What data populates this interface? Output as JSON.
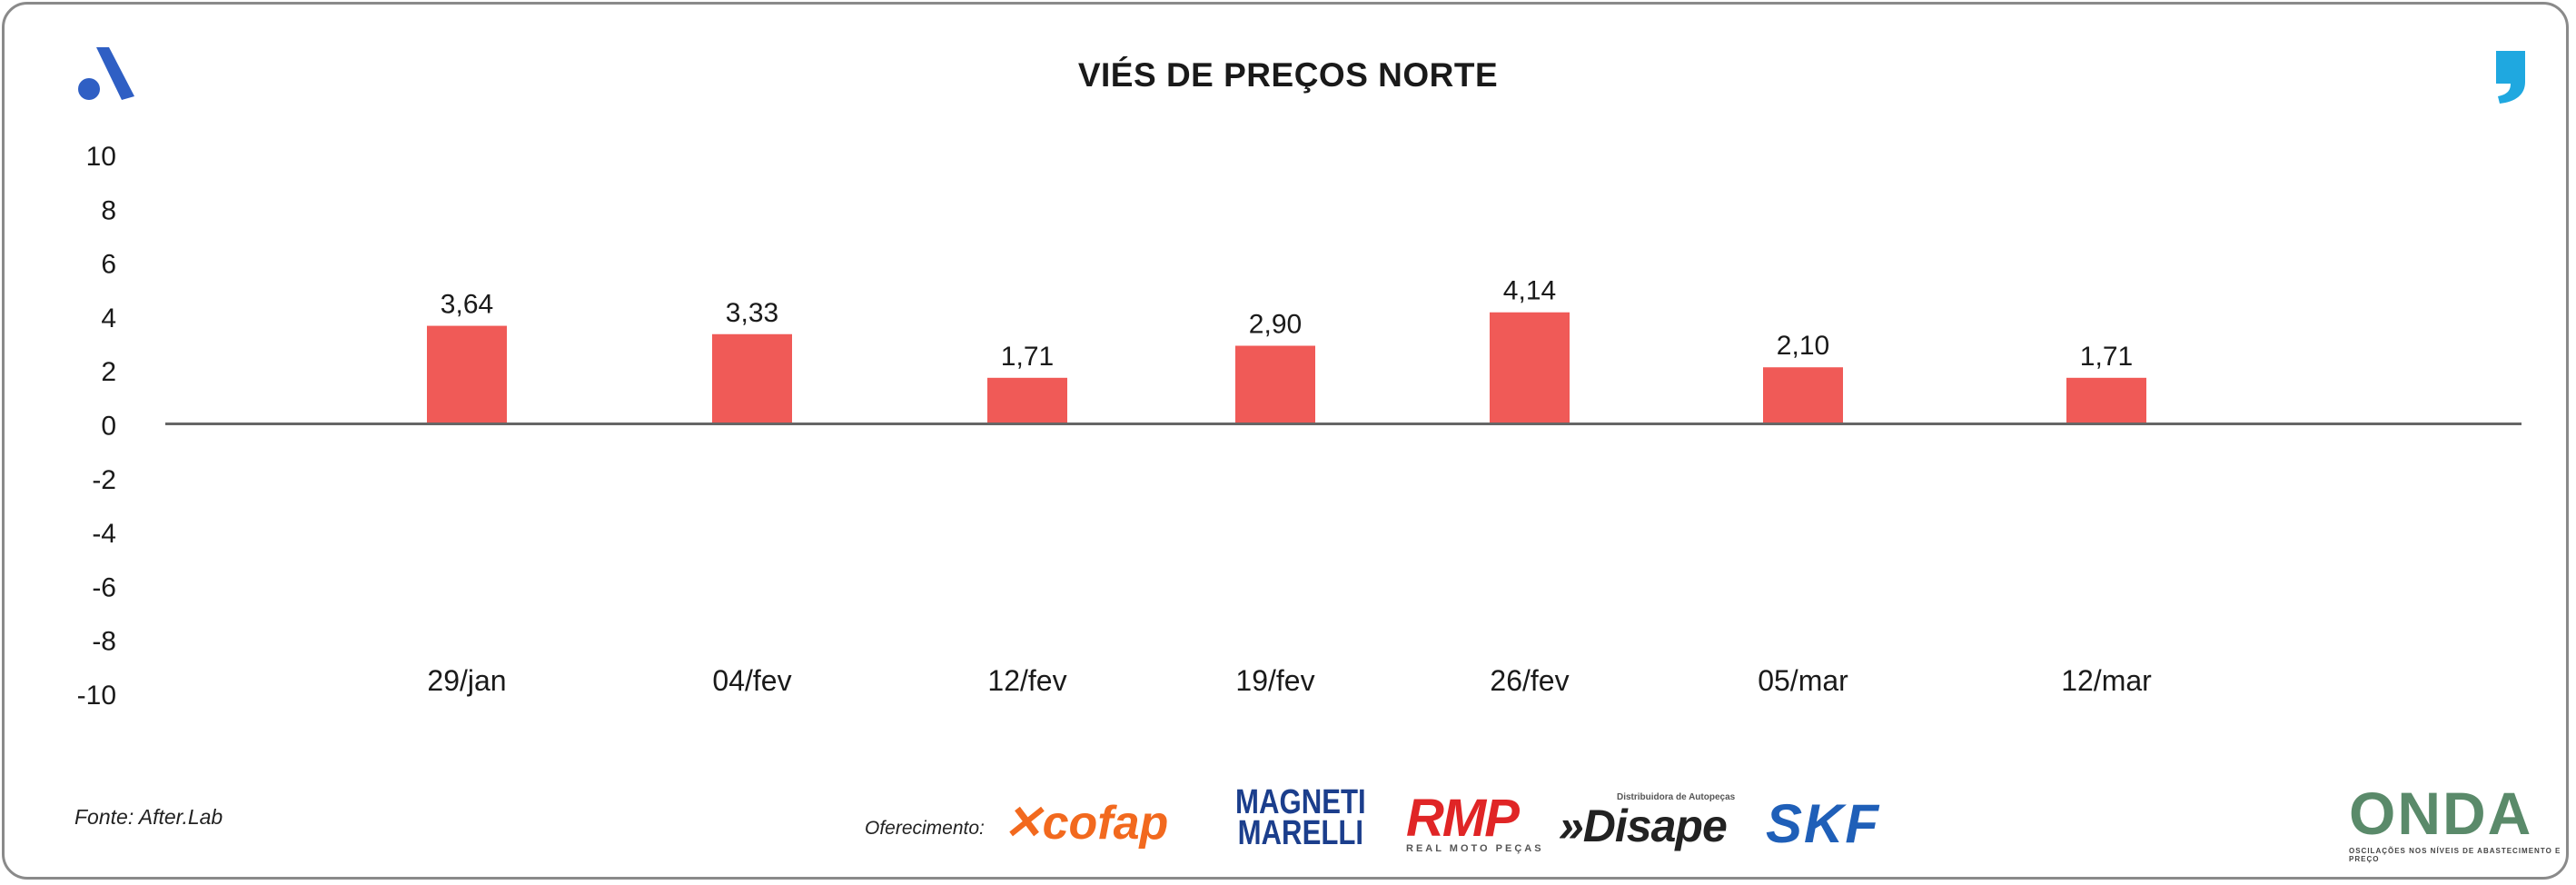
{
  "title": "VIÉS DE PREÇOS NORTE",
  "source": "Fonte: After.Lab",
  "sponsors": {
    "label": "Oferecimento:",
    "cofap": "cofap",
    "magneti_line1": "MAGNETI",
    "magneti_line2": "MARELLI",
    "rmp": "RMP",
    "rmp_sub": "REAL MOTO PEÇAS",
    "disape_sub": "Distribuidora de Autopeças",
    "disape": "»Disape",
    "skf": "SKF",
    "onda": "ONDA",
    "onda_sub": "OSCILAÇÕES NOS NÍVEIS DE ABASTECIMENTO E PREÇO"
  },
  "colors": {
    "bar": "#f05a57",
    "axis": "#666666",
    "logo_a": "#2f5fc4",
    "logo_comma": "#1fa8e0"
  },
  "chart_data": {
    "type": "bar",
    "title": "VIÉS DE PREÇOS NORTE",
    "categories": [
      "29/jan",
      "04/fev",
      "12/fev",
      "19/fev",
      "26/fev",
      "05/mar",
      "12/mar"
    ],
    "values": [
      3.64,
      3.33,
      1.71,
      2.9,
      4.14,
      2.1,
      1.71
    ],
    "value_labels": [
      "3,64",
      "3,33",
      "1,71",
      "2,90",
      "4,14",
      "2,10",
      "1,71"
    ],
    "yticks": [
      "10",
      "8",
      "6",
      "4",
      "2",
      "0",
      "-2",
      "-4",
      "-6",
      "-8",
      "-10"
    ],
    "ylim": [
      -10,
      10
    ],
    "grid": false,
    "legend": "none"
  }
}
